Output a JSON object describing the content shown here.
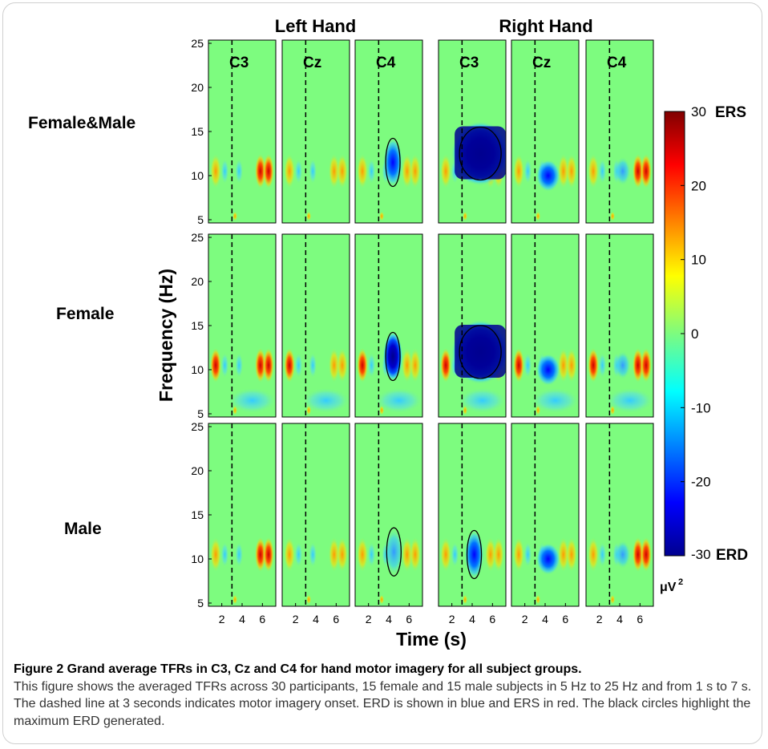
{
  "chart_data": {
    "type": "heatmap",
    "column_groups": [
      "Left Hand",
      "Right Hand"
    ],
    "channels": [
      "C3",
      "Cz",
      "C4"
    ],
    "rows": [
      "Female&Male",
      "Female",
      "Male"
    ],
    "xlabel": "Time (s)",
    "ylabel": "Frequency (Hz)",
    "x_ticks": [
      2,
      4,
      6
    ],
    "y_ticks": [
      5,
      10,
      15,
      20,
      25
    ],
    "xlim": [
      1,
      7
    ],
    "ylim": [
      5,
      25
    ],
    "onset_time": 3,
    "onset_style": "dashed black vertical line",
    "colorbar": {
      "min": -30,
      "max": 30,
      "ticks": [
        "30",
        "20",
        "10",
        "0",
        "-10",
        "-20",
        "-30"
      ],
      "top_label": "ERS",
      "bottom_label": "ERD",
      "unit": "μV",
      "unit_sup": "2",
      "colormap": "jet"
    },
    "panels": [
      {
        "row": "Female&Male",
        "group": "Left Hand",
        "channel": "C3",
        "circle": false
      },
      {
        "row": "Female&Male",
        "group": "Left Hand",
        "channel": "Cz",
        "circle": false
      },
      {
        "row": "Female&Male",
        "group": "Left Hand",
        "channel": "C4",
        "circle": true,
        "circle_center": [
          4.4,
          11.5
        ],
        "erd_min": -20
      },
      {
        "row": "Female&Male",
        "group": "Right Hand",
        "channel": "C3",
        "circle": true,
        "circle_center": [
          4.8,
          12.5
        ],
        "erd_min": -30
      },
      {
        "row": "Female&Male",
        "group": "Right Hand",
        "channel": "Cz",
        "circle": false
      },
      {
        "row": "Female&Male",
        "group": "Right Hand",
        "channel": "C4",
        "circle": false
      },
      {
        "row": "Female",
        "group": "Left Hand",
        "channel": "C3",
        "circle": false
      },
      {
        "row": "Female",
        "group": "Left Hand",
        "channel": "Cz",
        "circle": false
      },
      {
        "row": "Female",
        "group": "Left Hand",
        "channel": "C4",
        "circle": true,
        "circle_center": [
          4.4,
          11.5
        ],
        "erd_min": -26
      },
      {
        "row": "Female",
        "group": "Right Hand",
        "channel": "C3",
        "circle": true,
        "circle_center": [
          4.8,
          12
        ],
        "erd_min": -30
      },
      {
        "row": "Female",
        "group": "Right Hand",
        "channel": "Cz",
        "circle": false
      },
      {
        "row": "Female",
        "group": "Right Hand",
        "channel": "C4",
        "circle": false
      },
      {
        "row": "Male",
        "group": "Left Hand",
        "channel": "C3",
        "circle": false
      },
      {
        "row": "Male",
        "group": "Left Hand",
        "channel": "Cz",
        "circle": false
      },
      {
        "row": "Male",
        "group": "Left Hand",
        "channel": "C4",
        "circle": true,
        "circle_center": [
          4.5,
          10.8
        ],
        "erd_min": -4
      },
      {
        "row": "Male",
        "group": "Right Hand",
        "channel": "C3",
        "circle": true,
        "circle_center": [
          4.2,
          10.5
        ],
        "erd_min": -15
      },
      {
        "row": "Male",
        "group": "Right Hand",
        "channel": "Cz",
        "circle": false
      },
      {
        "row": "Male",
        "group": "Right Hand",
        "channel": "C4",
        "circle": false
      }
    ]
  },
  "caption": {
    "title": "Figure 2 Grand average TFRs in C3, Cz and C4 for hand motor imagery for all subject groups.",
    "body": "This figure shows the averaged TFRs across 30 participants, 15 female and 15 male subjects in 5 Hz to 25 Hz and from 1 s to 7 s. The dashed line at 3 seconds indicates motor imagery onset. ERD is shown in blue and ERS in red. The black circles highlight the maximum ERD generated."
  },
  "colors": {
    "background_green": "#7dfc7f",
    "erd_blue": "#00008f",
    "ers_red": "#800000",
    "caption_text": "#333333"
  }
}
